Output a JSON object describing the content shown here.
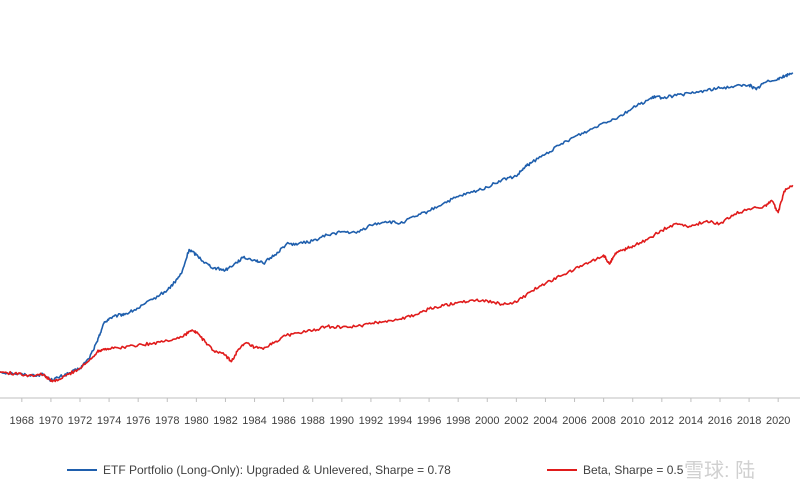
{
  "chart_data": {
    "type": "line",
    "title": "",
    "xlabel": "",
    "ylabel": "",
    "xlim": [
      1966.5,
      2021.5
    ],
    "ylim": [
      0,
      100
    ],
    "grid": false,
    "legend_position": "bottom",
    "x_ticks": [
      "1968",
      "1970",
      "1972",
      "1974",
      "1976",
      "1978",
      "1980",
      "1982",
      "1984",
      "1986",
      "1988",
      "1990",
      "1992",
      "1994",
      "1996",
      "1998",
      "2000",
      "2002",
      "2004",
      "2006",
      "2008",
      "2010",
      "2012",
      "2014",
      "2016",
      "2018",
      "2020"
    ],
    "series": [
      {
        "name": "ETF Portfolio (Long-Only): Upgraded & Unlevered, Sharpe = 0.78",
        "color": "#1f5fad",
        "points": [
          [
            1966.5,
            8.5
          ],
          [
            1967.5,
            8.0
          ],
          [
            1968.5,
            7.5
          ],
          [
            1969.5,
            7.7
          ],
          [
            1970.0,
            6.0
          ],
          [
            1970.5,
            6.8
          ],
          [
            1971.2,
            8.0
          ],
          [
            1972.0,
            9.6
          ],
          [
            1972.6,
            12.5
          ],
          [
            1973.2,
            17.8
          ],
          [
            1973.6,
            23.0
          ],
          [
            1974.0,
            24.7
          ],
          [
            1974.6,
            25.6
          ],
          [
            1975.2,
            26.2
          ],
          [
            1976.0,
            27.8
          ],
          [
            1977.0,
            30.5
          ],
          [
            1978.0,
            33.3
          ],
          [
            1978.5,
            35.6
          ],
          [
            1979.0,
            38.5
          ],
          [
            1979.5,
            45.6
          ],
          [
            1980.0,
            44.0
          ],
          [
            1980.6,
            41.6
          ],
          [
            1981.2,
            40.0
          ],
          [
            1982.0,
            39.4
          ],
          [
            1982.6,
            41.2
          ],
          [
            1983.2,
            43.1
          ],
          [
            1984.0,
            42.5
          ],
          [
            1984.6,
            41.4
          ],
          [
            1985.4,
            44.0
          ],
          [
            1986.2,
            47.3
          ],
          [
            1987.0,
            47.3
          ],
          [
            1988.0,
            48.2
          ],
          [
            1989.0,
            50.0
          ],
          [
            1990.0,
            51.0
          ],
          [
            1991.0,
            50.6
          ],
          [
            1992.0,
            53.0
          ],
          [
            1993.0,
            54.1
          ],
          [
            1994.0,
            53.5
          ],
          [
            1995.0,
            55.5
          ],
          [
            1996.0,
            57.3
          ],
          [
            1997.0,
            59.6
          ],
          [
            1998.0,
            61.6
          ],
          [
            1999.0,
            63.0
          ],
          [
            2000.0,
            64.5
          ],
          [
            2001.0,
            66.7
          ],
          [
            2002.0,
            67.8
          ],
          [
            2002.6,
            70.6
          ],
          [
            2003.0,
            71.8
          ],
          [
            2004.0,
            74.5
          ],
          [
            2005.0,
            77.3
          ],
          [
            2006.0,
            79.8
          ],
          [
            2007.0,
            81.7
          ],
          [
            2008.0,
            84.1
          ],
          [
            2009.0,
            85.7
          ],
          [
            2010.0,
            88.5
          ],
          [
            2011.0,
            90.8
          ],
          [
            2011.6,
            92.0
          ],
          [
            2012.0,
            91.6
          ],
          [
            2013.0,
            92.3
          ],
          [
            2014.0,
            92.9
          ],
          [
            2015.0,
            93.8
          ],
          [
            2016.0,
            94.5
          ],
          [
            2017.0,
            95.1
          ],
          [
            2018.0,
            95.5
          ],
          [
            2018.5,
            94.1
          ],
          [
            2019.0,
            96.1
          ],
          [
            2020.0,
            97.5
          ],
          [
            2020.5,
            98.2
          ],
          [
            2021.0,
            99.2
          ]
        ]
      },
      {
        "name": "Beta, Sharpe = 0.5",
        "color": "#e01b1b",
        "points": [
          [
            1966.5,
            8.5
          ],
          [
            1967.5,
            8.0
          ],
          [
            1968.5,
            7.5
          ],
          [
            1969.5,
            7.7
          ],
          [
            1970.0,
            5.7
          ],
          [
            1970.5,
            6.0
          ],
          [
            1971.2,
            7.8
          ],
          [
            1972.0,
            9.6
          ],
          [
            1972.6,
            11.8
          ],
          [
            1973.2,
            14.7
          ],
          [
            1973.6,
            15.5
          ],
          [
            1974.0,
            15.5
          ],
          [
            1975.0,
            16.0
          ],
          [
            1976.0,
            16.7
          ],
          [
            1977.0,
            17.1
          ],
          [
            1978.0,
            18.0
          ],
          [
            1979.0,
            19.1
          ],
          [
            1979.6,
            21.0
          ],
          [
            1980.0,
            20.6
          ],
          [
            1980.6,
            17.6
          ],
          [
            1981.2,
            14.9
          ],
          [
            1982.0,
            13.6
          ],
          [
            1982.4,
            11.6
          ],
          [
            1982.8,
            14.7
          ],
          [
            1983.4,
            17.3
          ],
          [
            1984.0,
            15.9
          ],
          [
            1984.6,
            15.4
          ],
          [
            1985.4,
            17.6
          ],
          [
            1986.2,
            19.6
          ],
          [
            1987.0,
            20.4
          ],
          [
            1988.0,
            21.0
          ],
          [
            1989.0,
            22.3
          ],
          [
            1990.0,
            22.0
          ],
          [
            1991.0,
            22.3
          ],
          [
            1992.0,
            23.1
          ],
          [
            1993.0,
            23.9
          ],
          [
            1994.0,
            24.5
          ],
          [
            1995.0,
            25.7
          ],
          [
            1996.0,
            27.6
          ],
          [
            1997.0,
            28.6
          ],
          [
            1998.0,
            29.6
          ],
          [
            1999.0,
            30.3
          ],
          [
            2000.0,
            30.1
          ],
          [
            2001.0,
            29.0
          ],
          [
            2002.0,
            29.6
          ],
          [
            2003.0,
            32.9
          ],
          [
            2004.0,
            35.3
          ],
          [
            2005.0,
            37.5
          ],
          [
            2006.0,
            39.6
          ],
          [
            2007.0,
            41.7
          ],
          [
            2008.0,
            43.9
          ],
          [
            2008.4,
            41.2
          ],
          [
            2008.8,
            44.5
          ],
          [
            2009.4,
            45.6
          ],
          [
            2010.0,
            46.7
          ],
          [
            2011.0,
            48.6
          ],
          [
            2012.0,
            51.4
          ],
          [
            2013.0,
            53.5
          ],
          [
            2014.0,
            52.6
          ],
          [
            2015.0,
            54.1
          ],
          [
            2016.0,
            53.5
          ],
          [
            2017.0,
            56.3
          ],
          [
            2018.0,
            57.9
          ],
          [
            2019.0,
            58.7
          ],
          [
            2019.6,
            60.2
          ],
          [
            2020.0,
            56.8
          ],
          [
            2020.4,
            63.2
          ],
          [
            2021.0,
            65.1
          ]
        ]
      }
    ]
  },
  "watermark": "雪球: 陆"
}
